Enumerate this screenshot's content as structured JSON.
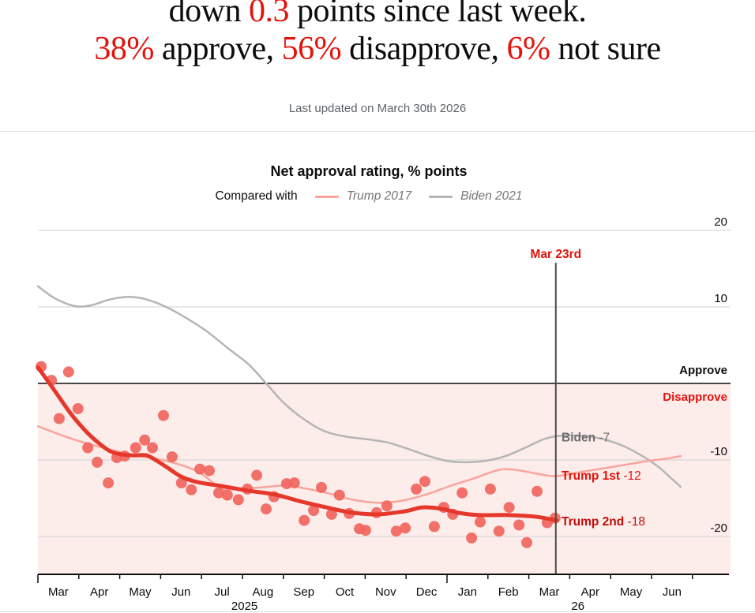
{
  "header": {
    "line1_parts": [
      {
        "text": "down ",
        "red": false
      },
      {
        "text": "0.3",
        "red": true
      },
      {
        "text": " points since last week.",
        "red": false
      }
    ],
    "line2_parts": [
      {
        "text": "38%",
        "red": true
      },
      {
        "text": " approve, ",
        "red": false
      },
      {
        "text": "56%",
        "red": true
      },
      {
        "text": " disapprove, ",
        "red": false
      },
      {
        "text": "6%",
        "red": true
      },
      {
        "text": " not sure",
        "red": false
      }
    ],
    "updated": "Last updated on March 30th 2026"
  },
  "chart": {
    "title": "Net approval rating, % points",
    "legend": {
      "compared_with": "Compared with",
      "series": [
        {
          "name": "Trump 2017",
          "color": "#f8a59d"
        },
        {
          "name": "Biden 2021",
          "color": "#b5b5b5"
        }
      ]
    }
  },
  "chart_data": {
    "type": "line+scatter",
    "title": "Net approval rating, % points",
    "x_axis": {
      "unit": "months since 1 Mar 2025",
      "tick_months": [
        "Mar",
        "Apr",
        "May",
        "Jun",
        "Jul",
        "Aug",
        "Sep",
        "Oct",
        "Nov",
        "Dec",
        "Jan",
        "Feb",
        "Mar",
        "Apr",
        "May",
        "Jun"
      ],
      "year_labels": [
        {
          "text": "2025",
          "t": 5.05
        },
        {
          "text": "26",
          "t": 13.2
        }
      ],
      "long_tick_indices": [
        0,
        10
      ],
      "range_months": [
        0,
        16.93
      ]
    },
    "y_axis": {
      "ticks": [
        20,
        10,
        -10,
        -20
      ],
      "zero_line": 0,
      "approve_label": "Approve",
      "disapprove_label": "Disapprove",
      "approve_color": "#0d0d0d",
      "disapprove_color": "#e3120b",
      "range": [
        -24.9,
        20
      ],
      "grid_color": "#d9d9d9",
      "band_below_zero_color": "#fcecea"
    },
    "marker": {
      "label": "Mar 23rd",
      "t": 12.66,
      "color": "#e3120b",
      "line_color": "#4a4a4a"
    },
    "series": [
      {
        "id": "biden-2021",
        "name": "Biden 2021",
        "end_label": "Biden",
        "end_value": "-7",
        "label_color": "#6e6e6e",
        "color": "#b5b5b5",
        "width": 2.5,
        "points": [
          [
            0,
            12.7
          ],
          [
            0.42,
            11.1
          ],
          [
            0.91,
            10.1
          ],
          [
            1.29,
            10.2
          ],
          [
            1.78,
            11.0
          ],
          [
            2.22,
            11.3
          ],
          [
            2.64,
            11.0
          ],
          [
            3.13,
            10.0
          ],
          [
            3.61,
            8.6
          ],
          [
            4.13,
            6.8
          ],
          [
            4.67,
            4.5
          ],
          [
            5.15,
            2.5
          ],
          [
            5.58,
            0.0
          ],
          [
            6.02,
            -2.6
          ],
          [
            6.51,
            -4.7
          ],
          [
            6.99,
            -6.2
          ],
          [
            7.47,
            -6.9
          ],
          [
            8.05,
            -7.3
          ],
          [
            8.53,
            -7.7
          ],
          [
            9.02,
            -8.5
          ],
          [
            9.5,
            -9.4
          ],
          [
            9.98,
            -10.1
          ],
          [
            10.46,
            -10.3
          ],
          [
            10.95,
            -10.1
          ],
          [
            11.43,
            -9.5
          ],
          [
            11.91,
            -8.4
          ],
          [
            12.36,
            -7.3
          ],
          [
            12.68,
            -6.9
          ],
          [
            13.17,
            -6.8
          ],
          [
            13.75,
            -7.2
          ],
          [
            14.32,
            -8.2
          ],
          [
            14.81,
            -9.6
          ],
          [
            15.19,
            -11.0
          ],
          [
            15.48,
            -12.4
          ],
          [
            15.71,
            -13.5
          ]
        ]
      },
      {
        "id": "trump-1st",
        "name": "Trump 2017",
        "end_label": "Trump 1st",
        "end_value": "-12",
        "label_color": "#e3120b",
        "color": "#f8a59d",
        "width": 2.5,
        "points": [
          [
            0,
            -5.6
          ],
          [
            0.81,
            -7.2
          ],
          [
            1.58,
            -8.4
          ],
          [
            2.36,
            -9.4
          ],
          [
            3.13,
            -10.1
          ],
          [
            3.9,
            -11.5
          ],
          [
            4.48,
            -13.7
          ],
          [
            4.86,
            -13.8
          ],
          [
            5.64,
            -13.5
          ],
          [
            6.08,
            -13.3
          ],
          [
            6.41,
            -13.6
          ],
          [
            7.05,
            -14.3
          ],
          [
            7.7,
            -15.2
          ],
          [
            8.34,
            -15.6
          ],
          [
            8.92,
            -15.3
          ],
          [
            9.5,
            -14.5
          ],
          [
            10.08,
            -13.4
          ],
          [
            10.66,
            -12.4
          ],
          [
            11.14,
            -11.5
          ],
          [
            11.43,
            -11.2
          ],
          [
            11.81,
            -11.4
          ],
          [
            12.3,
            -11.9
          ],
          [
            12.68,
            -12.1
          ],
          [
            13.36,
            -11.5
          ],
          [
            14.07,
            -10.9
          ],
          [
            14.84,
            -10.2
          ],
          [
            15.39,
            -9.8
          ],
          [
            15.71,
            -9.5
          ]
        ]
      },
      {
        "id": "trump-2nd",
        "name": "Trump 2nd",
        "end_label": "Trump 2nd",
        "end_value": "-18",
        "label_color": "#bf0e07",
        "color": "#e6372b",
        "width": 5,
        "points": [
          [
            0,
            2.1
          ],
          [
            0.39,
            -0.8
          ],
          [
            0.81,
            -4.0
          ],
          [
            1.2,
            -6.4
          ],
          [
            1.49,
            -7.8
          ],
          [
            1.78,
            -8.9
          ],
          [
            2.07,
            -9.3
          ],
          [
            2.39,
            -9.4
          ],
          [
            2.66,
            -9.4
          ],
          [
            2.93,
            -10.2
          ],
          [
            3.22,
            -11.2
          ],
          [
            3.51,
            -12.2
          ],
          [
            3.9,
            -12.9
          ],
          [
            4.48,
            -13.4
          ],
          [
            5.12,
            -14.0
          ],
          [
            5.77,
            -14.5
          ],
          [
            6.41,
            -15.4
          ],
          [
            7.05,
            -16.2
          ],
          [
            7.7,
            -16.9
          ],
          [
            8.34,
            -17.1
          ],
          [
            8.98,
            -16.7
          ],
          [
            9.4,
            -16.2
          ],
          [
            9.88,
            -16.4
          ],
          [
            10.27,
            -16.9
          ],
          [
            10.75,
            -17.2
          ],
          [
            11.43,
            -17.2
          ],
          [
            12.14,
            -17.4
          ],
          [
            12.68,
            -17.9
          ]
        ]
      }
    ],
    "scatter": {
      "name": "weekly poll results",
      "color": "#f1655e",
      "opacity": 0.92,
      "radius": 7,
      "points": [
        [
          0.08,
          2.2
        ],
        [
          0.33,
          0.4
        ],
        [
          0.52,
          -4.6
        ],
        [
          0.75,
          1.5
        ],
        [
          0.98,
          -3.3
        ],
        [
          1.22,
          -8.4
        ],
        [
          1.45,
          -10.3
        ],
        [
          1.72,
          -13.0
        ],
        [
          1.93,
          -9.7
        ],
        [
          2.12,
          -9.5
        ],
        [
          2.39,
          -8.4
        ],
        [
          2.61,
          -7.4
        ],
        [
          2.8,
          -8.4
        ],
        [
          3.07,
          -4.2
        ],
        [
          3.28,
          -9.6
        ],
        [
          3.51,
          -13.0
        ],
        [
          3.75,
          -13.9
        ],
        [
          3.96,
          -11.2
        ],
        [
          4.19,
          -11.4
        ],
        [
          4.42,
          -14.3
        ],
        [
          4.63,
          -14.6
        ],
        [
          4.9,
          -15.2
        ],
        [
          5.12,
          -13.8
        ],
        [
          5.35,
          -12.0
        ],
        [
          5.58,
          -16.4
        ],
        [
          5.77,
          -14.8
        ],
        [
          6.08,
          -13.1
        ],
        [
          6.27,
          -13.0
        ],
        [
          6.51,
          -17.9
        ],
        [
          6.74,
          -16.6
        ],
        [
          6.93,
          -13.6
        ],
        [
          7.18,
          -17.1
        ],
        [
          7.37,
          -14.6
        ],
        [
          7.61,
          -17.0
        ],
        [
          7.86,
          -19.0
        ],
        [
          8.01,
          -19.2
        ],
        [
          8.28,
          -16.9
        ],
        [
          8.53,
          -16.0
        ],
        [
          8.76,
          -19.3
        ],
        [
          8.98,
          -18.9
        ],
        [
          9.25,
          -13.8
        ],
        [
          9.46,
          -12.8
        ],
        [
          9.69,
          -18.7
        ],
        [
          9.92,
          -16.2
        ],
        [
          10.14,
          -17.1
        ],
        [
          10.37,
          -14.3
        ],
        [
          10.6,
          -20.2
        ],
        [
          10.81,
          -18.1
        ],
        [
          11.06,
          -13.8
        ],
        [
          11.27,
          -19.3
        ],
        [
          11.52,
          -16.2
        ],
        [
          11.76,
          -18.5
        ],
        [
          11.95,
          -20.8
        ],
        [
          12.2,
          -14.1
        ],
        [
          12.45,
          -18.2
        ],
        [
          12.64,
          -17.6
        ]
      ]
    }
  }
}
